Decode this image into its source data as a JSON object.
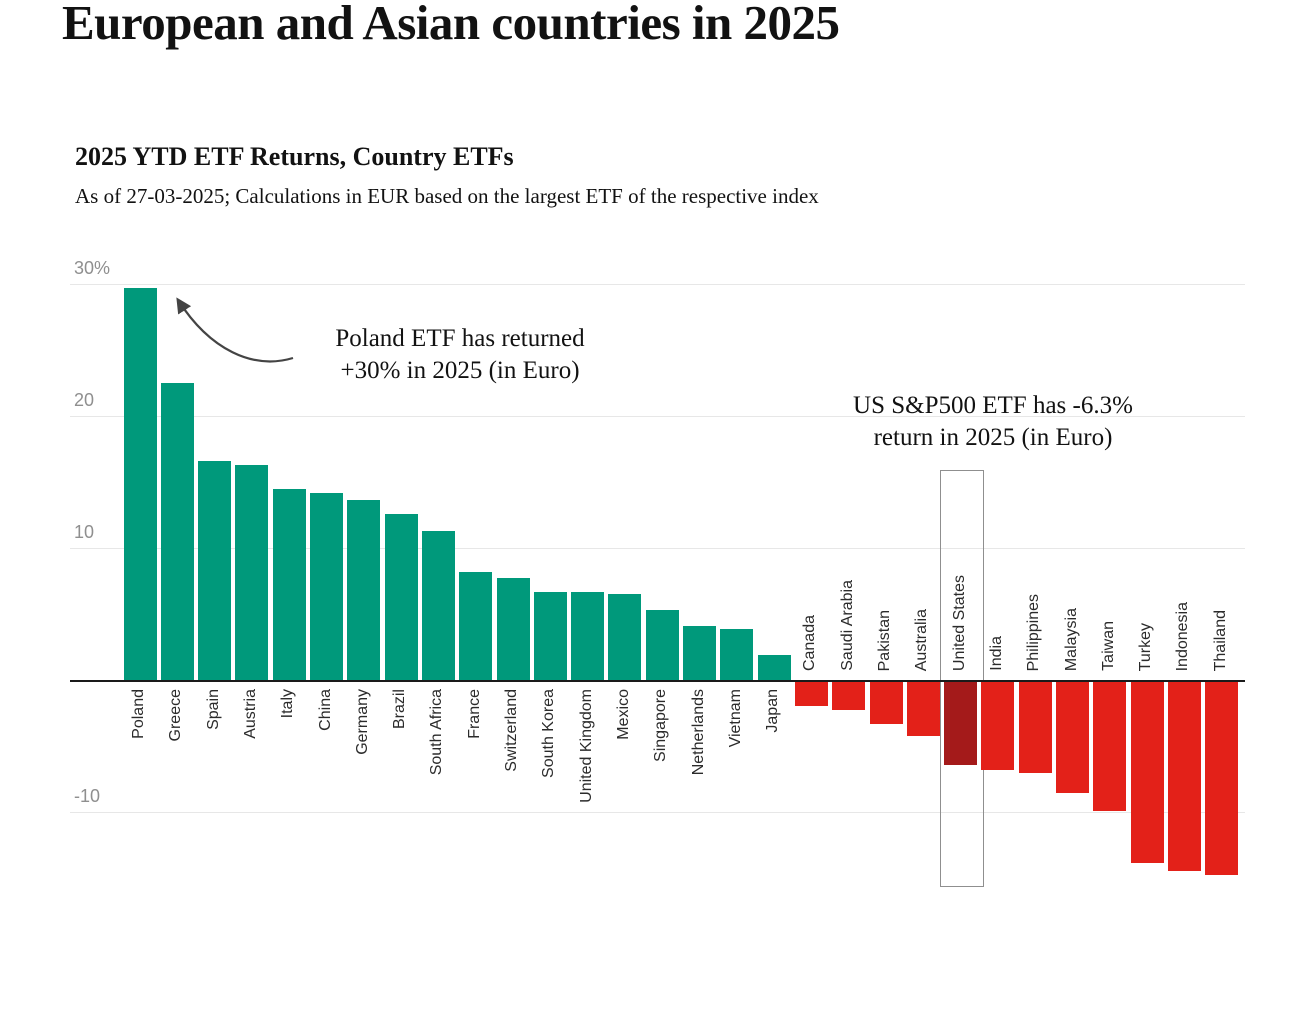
{
  "page": {
    "headline": "European and Asian countries in 2025"
  },
  "chart": {
    "title": "2025 YTD ETF Returns, Country ETFs",
    "subtitle": "As of 27-03-2025; Calculations in EUR based on the largest ETF of the respective index",
    "annotations": {
      "poland": {
        "line1": "Poland ETF has returned",
        "line2": "+30% in 2025  (in Euro)"
      },
      "us": {
        "line1": "US S&P500 ETF has -6.3%",
        "line2": "return in 2025 (in Euro)"
      }
    },
    "y_ticks": [
      {
        "label": "30%",
        "value": 30
      },
      {
        "label": "20",
        "value": 20
      },
      {
        "label": "10",
        "value": 10
      },
      {
        "label": "-10",
        "value": -10
      }
    ]
  },
  "chart_data": {
    "type": "bar",
    "title": "2025 YTD ETF Returns, Country ETFs",
    "subtitle": "As of 27-03-2025; Calculations in EUR based on the largest ETF of the respective index",
    "categories": [
      "Poland",
      "Greece",
      "Spain",
      "Austria",
      "Italy",
      "China",
      "Germany",
      "Brazil",
      "South Africa",
      "France",
      "Switzerland",
      "South Korea",
      "United Kingdom",
      "Mexico",
      "Singapore",
      "Netherlands",
      "Vietnam",
      "Japan",
      "Canada",
      "Saudi Arabia",
      "Pakistan",
      "Australia",
      "United States",
      "India",
      "Philippines",
      "Malaysia",
      "Taiwan",
      "Turkey",
      "Indonesia",
      "Thailand"
    ],
    "values": [
      29.7,
      22.5,
      16.6,
      16.3,
      14.5,
      14.2,
      13.6,
      12.6,
      11.3,
      8.2,
      7.7,
      6.7,
      6.7,
      6.5,
      5.3,
      4.1,
      3.9,
      1.9,
      -1.8,
      -2.1,
      -3.2,
      -4.1,
      -6.3,
      -6.7,
      -6.9,
      -8.4,
      -9.8,
      -13.7,
      -14.3,
      -14.6
    ],
    "highlighted_category": "United States",
    "colors": {
      "positive": "#00997b",
      "negative": "#e32119",
      "highlight": "#a41a1a",
      "gridline": "#e7e7e7",
      "axis": "#1a1a1a"
    },
    "ylim": [
      -16,
      32
    ],
    "gridlines": [
      30,
      20,
      10,
      0,
      -10
    ],
    "legend": "none",
    "xlabel": "",
    "ylabel": ""
  }
}
